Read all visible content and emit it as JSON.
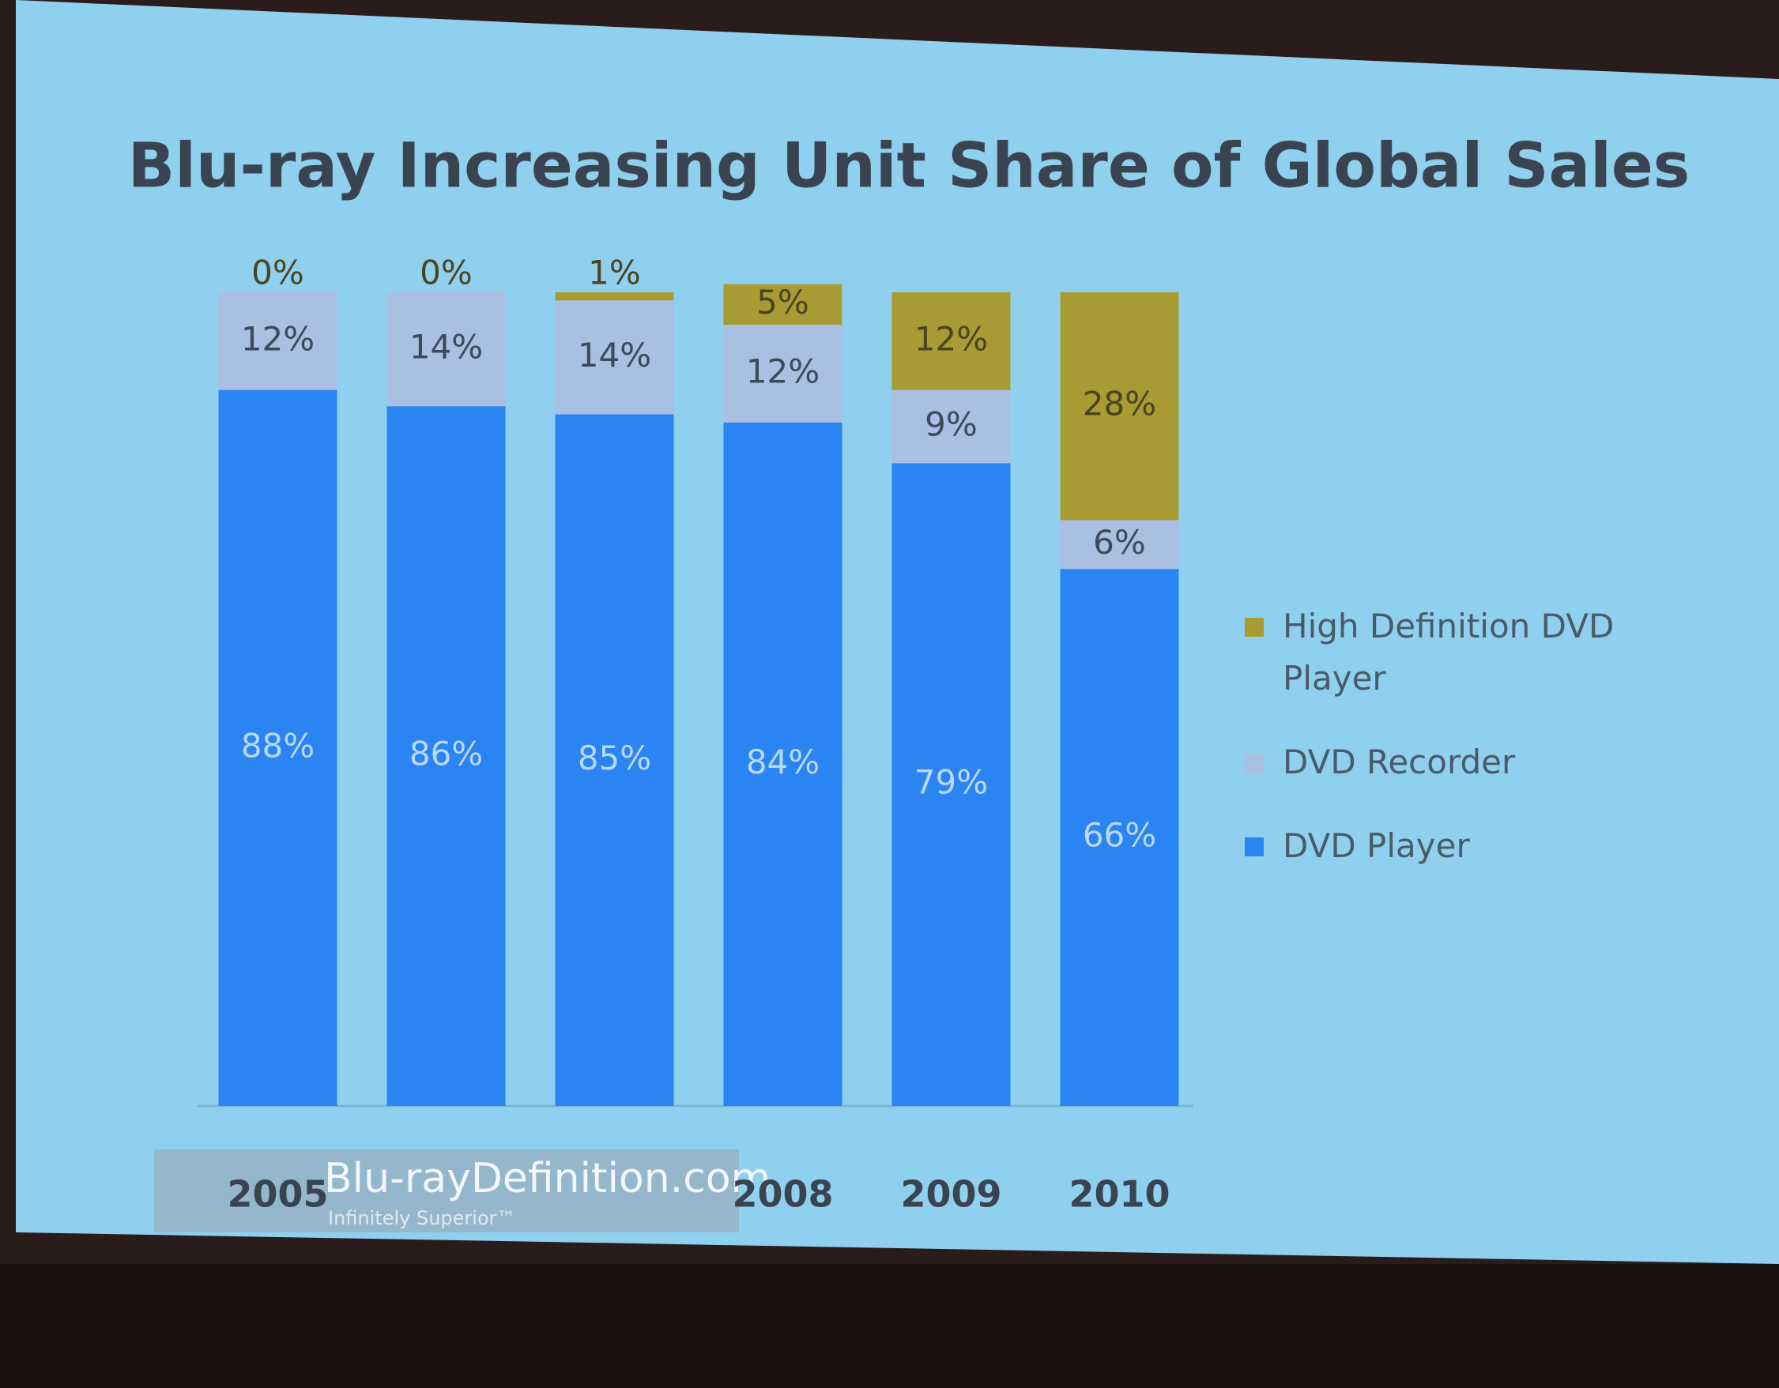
{
  "chart_data": {
    "type": "stacked-bar",
    "title": "Blu-ray Increasing Unit Share of Global Sales",
    "categories": [
      "2005",
      null,
      null,
      "2008",
      "2009",
      "2010"
    ],
    "series": [
      {
        "name": "DVD Player",
        "color": "#2a84f2",
        "values": [
          88,
          86,
          85,
          84,
          79,
          66
        ],
        "value_labels": [
          "88%",
          "86%",
          "85%",
          "84%",
          "79%",
          "66%"
        ]
      },
      {
        "name": "DVD Recorder",
        "color": "#a9c0e2",
        "values": [
          12,
          14,
          14,
          12,
          9,
          6
        ],
        "value_labels": [
          "12%",
          "14%",
          "14%",
          "12%",
          "9%",
          "6%"
        ]
      },
      {
        "name": "High Definition DVD Player",
        "color": "#a99b34",
        "values": [
          0,
          0,
          1,
          5,
          12,
          28
        ],
        "value_labels": [
          "0%",
          "0%",
          "1%",
          "5%",
          "12%",
          "28%"
        ]
      }
    ],
    "ylim": [
      0,
      100
    ],
    "grid": false,
    "legend": "right"
  },
  "watermark": {
    "text": "Blu-rayDefinition.com",
    "tagline": "Infinitely Superior™"
  }
}
